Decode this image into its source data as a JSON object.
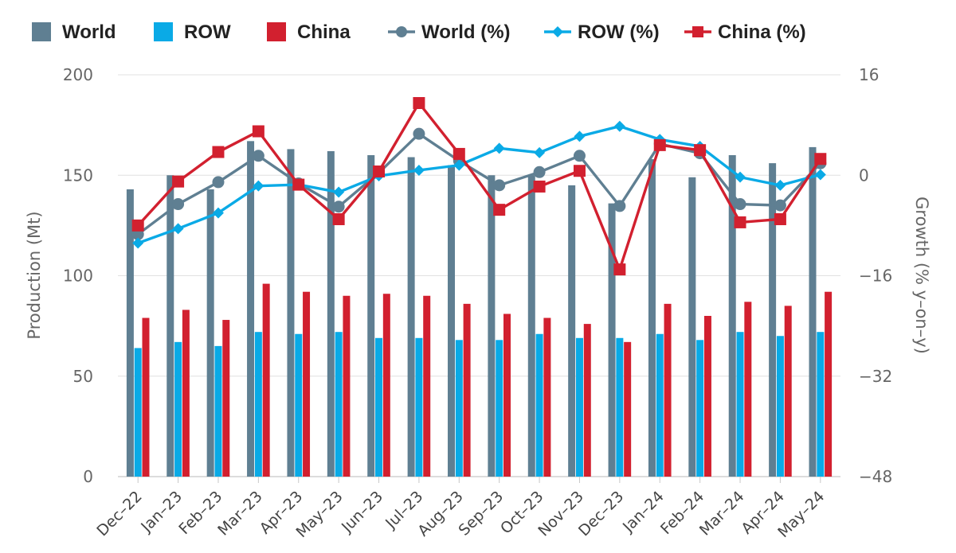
{
  "chart_data": {
    "type": "bar",
    "categories": [
      "Dec–22",
      "Jan–23",
      "Feb–23",
      "Mar–23",
      "Apr–23",
      "May–23",
      "Jun–23",
      "Jul–23",
      "Aug–23",
      "Sep–23",
      "Oct–23",
      "Nov–23",
      "Dec–23",
      "Jan–24",
      "Feb–24",
      "Mar–24",
      "Apr–24",
      "May–24"
    ],
    "ylabel": "Production (Mt)",
    "y2label": "Growth (% y–on–y)",
    "ylim": [
      0,
      200
    ],
    "y2lim": [
      -48,
      16
    ],
    "yticks": [
      "0",
      "50",
      "100",
      "150",
      "200"
    ],
    "y2ticks": [
      "−48",
      "−32",
      "−16",
      "0",
      "16"
    ],
    "grid": true,
    "legend_position": "top",
    "colors": {
      "world": "#5f7f92",
      "row": "#0aaae6",
      "china": "#d2202f"
    },
    "series": [
      {
        "name": "World",
        "kind": "bar",
        "axis": "left",
        "values": [
          143,
          150,
          143,
          167,
          163,
          162,
          160,
          159,
          155,
          150,
          150,
          145,
          136,
          158,
          149,
          160,
          156,
          164
        ]
      },
      {
        "name": "ROW",
        "kind": "bar",
        "axis": "left",
        "values": [
          64,
          67,
          65,
          72,
          71,
          72,
          69,
          69,
          68,
          68,
          71,
          69,
          69,
          71,
          68,
          72,
          70,
          72
        ]
      },
      {
        "name": "China",
        "kind": "bar",
        "axis": "left",
        "values": [
          79,
          83,
          78,
          96,
          92,
          90,
          91,
          90,
          86,
          81,
          79,
          76,
          67,
          86,
          80,
          87,
          85,
          92
        ]
      },
      {
        "name": "World (%)",
        "kind": "line",
        "axis": "right",
        "marker": "circle",
        "values": [
          -9.4,
          -4.6,
          -1.1,
          3.1,
          -1.3,
          -5.0,
          0.4,
          6.6,
          2.3,
          -1.6,
          0.5,
          3.1,
          -4.9,
          5.0,
          3.5,
          -4.6,
          -4.8,
          1.9
        ]
      },
      {
        "name": "ROW (%)",
        "kind": "line",
        "axis": "right",
        "marker": "diamond",
        "values": [
          -10.8,
          -8.5,
          -6.0,
          -1.7,
          -1.5,
          -2.7,
          -0.1,
          0.8,
          1.6,
          4.3,
          3.6,
          6.2,
          7.8,
          5.7,
          4.6,
          -0.3,
          -1.6,
          0.1
        ]
      },
      {
        "name": "China (%)",
        "kind": "line",
        "axis": "right",
        "marker": "square",
        "values": [
          -8.0,
          -1.0,
          3.7,
          7.0,
          -1.5,
          -7.0,
          0.6,
          11.5,
          3.4,
          -5.5,
          -1.8,
          0.7,
          -15.0,
          4.8,
          4.0,
          -7.5,
          -7.0,
          2.6
        ]
      }
    ]
  }
}
